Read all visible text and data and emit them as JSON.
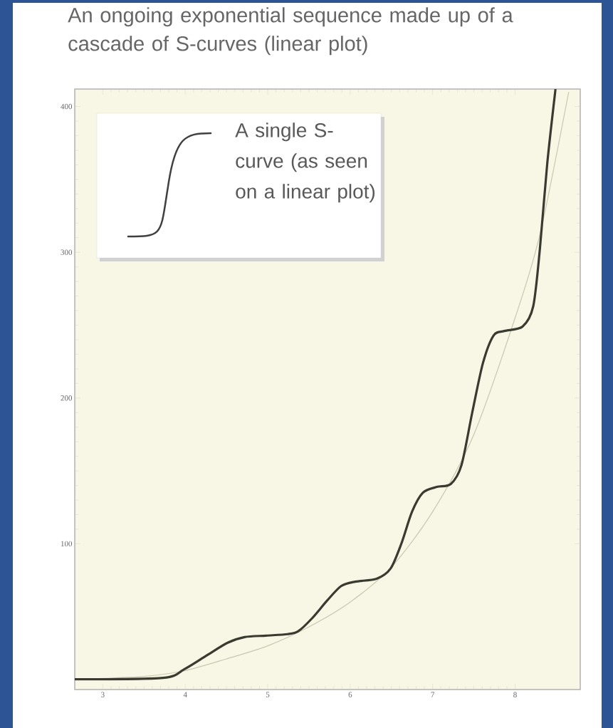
{
  "chart_data": {
    "type": "line",
    "title": "An ongoing exponential sequence made up of a cascade of S-curves (linear plot)",
    "annotations": [
      "A single S-curve (as seen on a linear plot)"
    ],
    "xlim": [
      2.66,
      8.79
    ],
    "ylim": [
      0,
      412
    ],
    "xticks": [
      3,
      4,
      5,
      6,
      7,
      8
    ],
    "yticks": [
      100,
      200,
      300,
      400
    ],
    "grid": false,
    "marker": "none",
    "line_style": "solid",
    "series": [
      {
        "color": "#c9c8b2",
        "x": [
          2.66,
          3.5,
          4.0,
          4.5,
          5.0,
          5.5,
          6.0,
          6.5,
          7.0,
          7.5,
          8.0,
          8.3,
          8.65
        ],
        "values": [
          7,
          9,
          13,
          21,
          30,
          43,
          60,
          84,
          122,
          175,
          255,
          312,
          410
        ]
      },
      {
        "color": "#3b3a30",
        "x": [
          2.66,
          3.73,
          3.99,
          4.25,
          4.51,
          4.72,
          4.98,
          5.24,
          5.37,
          5.54,
          5.72,
          5.89,
          6.06,
          6.32,
          6.49,
          6.62,
          6.75,
          6.88,
          7.05,
          7.22,
          7.35,
          7.48,
          7.61,
          7.74,
          7.87,
          8.09,
          8.22,
          8.3,
          8.39,
          8.49
        ],
        "values": [
          7,
          8,
          14,
          23,
          32,
          36,
          37,
          38,
          40,
          49,
          61,
          71,
          74,
          76,
          83,
          100,
          122,
          135,
          139,
          141,
          154,
          190,
          224,
          243,
          246,
          249,
          263,
          302,
          361,
          412
        ]
      }
    ]
  }
}
